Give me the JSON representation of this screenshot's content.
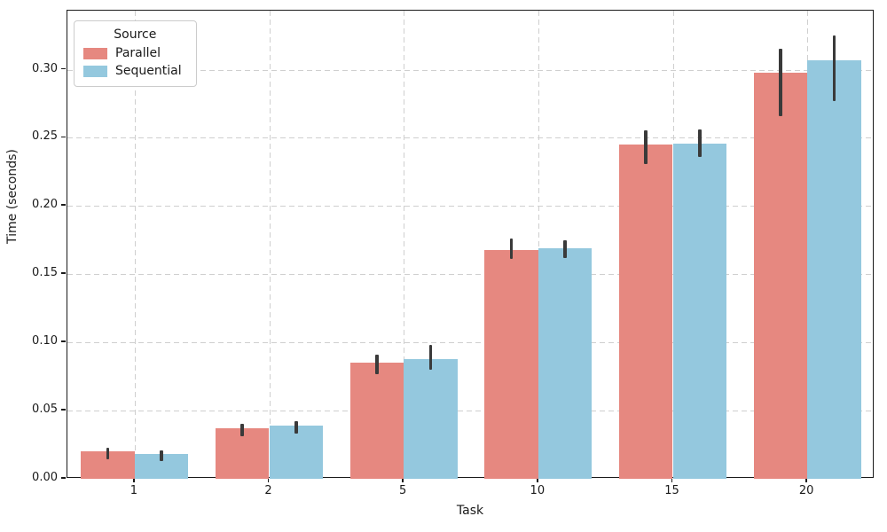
{
  "figure": {
    "background": "#ffffff",
    "spine_color": "#1a1a1a",
    "text_color": "#1a1a1a"
  },
  "chart_data": {
    "type": "bar",
    "title": "",
    "xlabel": "Task",
    "ylabel": "Time (seconds)",
    "categories": [
      "1",
      "2",
      "5",
      "10",
      "15",
      "20"
    ],
    "series": [
      {
        "name": "Parallel",
        "color": "#E68880",
        "values": [
          0.02,
          0.037,
          0.085,
          0.168,
          0.245,
          0.298
        ],
        "error_bars": [
          [
            0.0145,
            0.0225
          ],
          [
            0.0315,
            0.0405
          ],
          [
            0.077,
            0.091
          ],
          [
            0.161,
            0.176
          ],
          [
            0.231,
            0.2555
          ],
          [
            0.266,
            0.3155
          ]
        ]
      },
      {
        "name": "Sequential",
        "color": "#94C8DE",
        "values": [
          0.018,
          0.039,
          0.088,
          0.169,
          0.246,
          0.307
        ],
        "error_bars": [
          [
            0.013,
            0.021
          ],
          [
            0.033,
            0.0425
          ],
          [
            0.08,
            0.098
          ],
          [
            0.162,
            0.175
          ],
          [
            0.236,
            0.256
          ],
          [
            0.277,
            0.325
          ]
        ]
      }
    ],
    "ylim": [
      0,
      0.3433
    ],
    "yticks": [
      0.0,
      0.05,
      0.1,
      0.15,
      0.2,
      0.25,
      0.3
    ],
    "ytick_labels": [
      "0.00",
      "0.05",
      "0.10",
      "0.15",
      "0.20",
      "0.25",
      "0.30"
    ],
    "grid": {
      "on": true,
      "style": "dashed",
      "color": "#cfcfcf"
    },
    "error_bar_color": "#3a3a3a",
    "legend": {
      "title": "Source",
      "position": "upper-left",
      "entries": [
        "Parallel",
        "Sequential"
      ]
    }
  }
}
